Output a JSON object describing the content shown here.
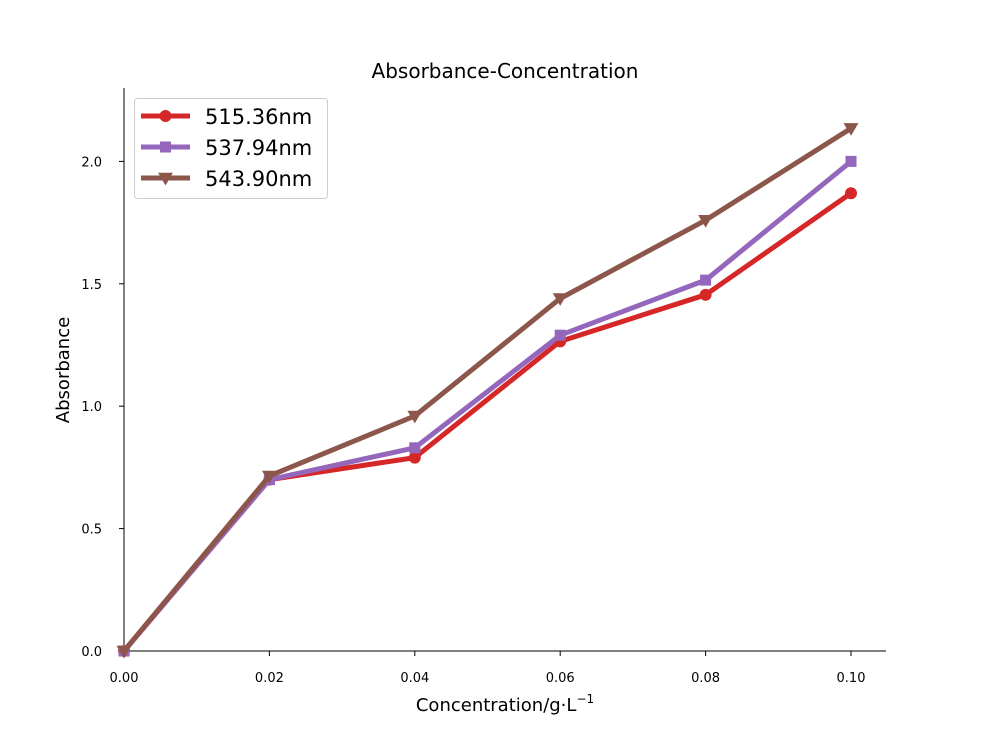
{
  "chart_data": {
    "type": "line",
    "title": "Absorbance-Concentration",
    "xlabel_main": "Concentration/g·L",
    "xlabel_sup": "−1",
    "ylabel": "Absorbance",
    "x": [
      0.0,
      0.02,
      0.04,
      0.06,
      0.08,
      0.1
    ],
    "xlim": [
      0.0,
      0.105
    ],
    "ylim": [
      0.0,
      2.3
    ],
    "x_ticks": [
      0.0,
      0.02,
      0.04,
      0.06,
      0.08,
      0.1
    ],
    "x_tick_labels": [
      "0.00",
      "0.02",
      "0.04",
      "0.06",
      "0.08",
      "0.10"
    ],
    "y_ticks": [
      0.0,
      0.5,
      1.0,
      1.5,
      2.0
    ],
    "y_tick_labels": [
      "0.0",
      "0.5",
      "1.0",
      "1.5",
      "2.0"
    ],
    "grid": false,
    "legend_position": "top-left",
    "series": [
      {
        "name": "515.36nm",
        "color": "#d62728",
        "marker": "circle",
        "values": [
          0.0,
          0.7,
          0.79,
          1.265,
          1.455,
          1.87
        ]
      },
      {
        "name": "537.94nm",
        "color": "#9467bd",
        "marker": "square",
        "values": [
          0.0,
          0.7,
          0.83,
          1.29,
          1.515,
          2.0
        ]
      },
      {
        "name": "543.90nm",
        "color": "#8c564b",
        "marker": "triangle-down",
        "values": [
          0.0,
          0.715,
          0.96,
          1.44,
          1.76,
          2.135
        ]
      }
    ]
  }
}
